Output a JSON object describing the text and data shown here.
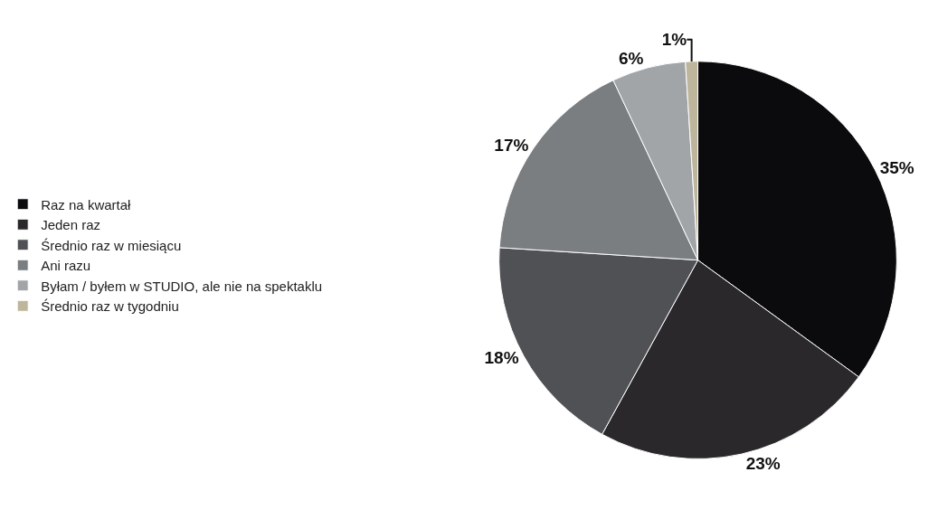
{
  "chart_data": {
    "type": "pie",
    "categories": [
      "Raz na kwartał",
      "Jeden raz",
      "Średnio raz w miesiącu",
      "Ani razu",
      "Byłam / byłem w STUDIO, ale nie na spektaklu",
      "Średnio raz w tygodniu"
    ],
    "values": [
      35,
      23,
      18,
      17,
      6,
      1
    ],
    "value_labels": [
      "35%",
      "23%",
      "18%",
      "17%",
      "6%",
      "1%"
    ],
    "colors": [
      "#0b0a0c",
      "#2a282b",
      "#505155",
      "#7a7e81",
      "#a1a5a8",
      "#bdb59c"
    ],
    "legend": "left"
  }
}
